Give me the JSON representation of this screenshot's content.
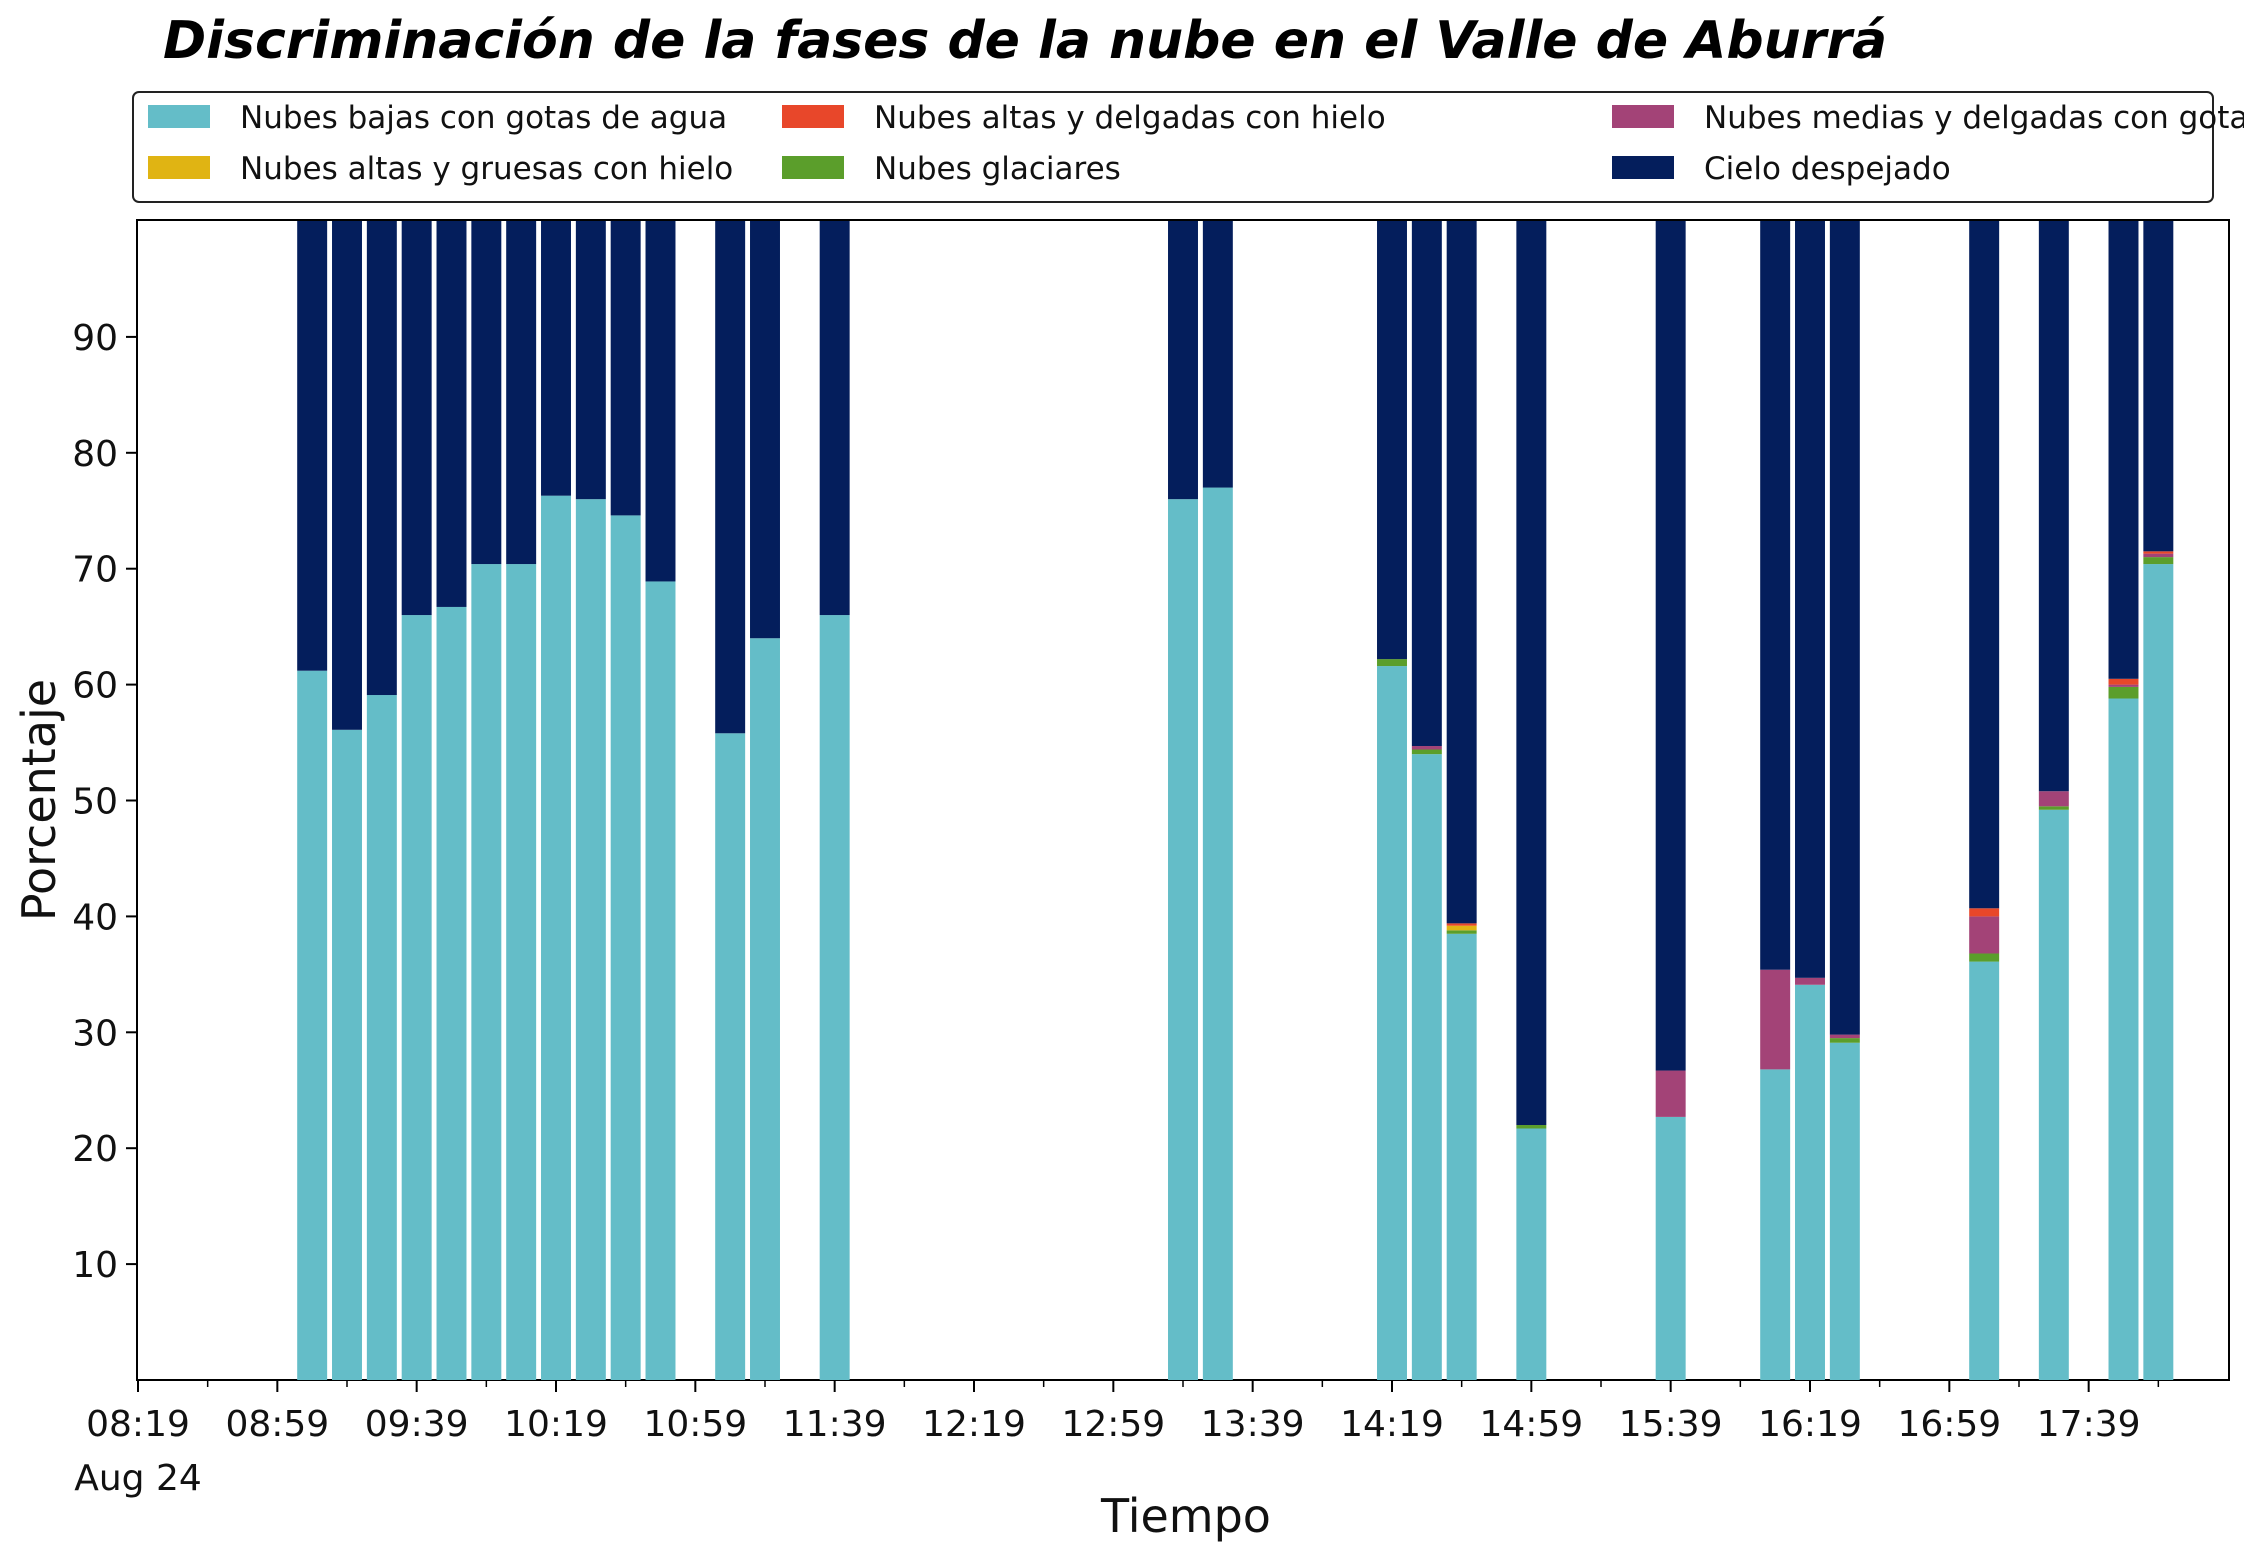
{
  "chart_data": {
    "type": "bar",
    "stacked": true,
    "title": "Discriminación de la fases de la nube en el Valle de Aburrá",
    "xlabel": "Tiempo",
    "ylabel": "Porcentaje",
    "ylim": [
      0,
      100
    ],
    "yticks": [
      10,
      20,
      30,
      40,
      50,
      60,
      70,
      80,
      90
    ],
    "xticks": [
      {
        "time": "08:19",
        "label": "08:19",
        "sublabel": "Aug 24"
      },
      {
        "time": "08:59",
        "label": "08:59"
      },
      {
        "time": "09:39",
        "label": "09:39"
      },
      {
        "time": "10:19",
        "label": "10:19"
      },
      {
        "time": "10:59",
        "label": "10:59"
      },
      {
        "time": "11:39",
        "label": "11:39"
      },
      {
        "time": "12:19",
        "label": "12:19"
      },
      {
        "time": "12:59",
        "label": "12:59"
      },
      {
        "time": "13:39",
        "label": "13:39"
      },
      {
        "time": "14:19",
        "label": "14:19"
      },
      {
        "time": "14:59",
        "label": "14:59"
      },
      {
        "time": "15:39",
        "label": "15:39"
      },
      {
        "time": "16:19",
        "label": "16:19"
      },
      {
        "time": "16:59",
        "label": "16:59"
      },
      {
        "time": "17:39",
        "label": "17:39"
      }
    ],
    "xlim": [
      "08:19",
      "18:19"
    ],
    "x": [
      "09:09",
      "09:19",
      "09:29",
      "09:39",
      "09:49",
      "09:59",
      "10:09",
      "10:19",
      "10:29",
      "10:39",
      "10:49",
      "11:09",
      "11:19",
      "11:39",
      "13:19",
      "13:29",
      "14:19",
      "14:29",
      "14:39",
      "14:59",
      "15:39",
      "16:09",
      "16:19",
      "16:29",
      "17:09",
      "17:29",
      "17:49",
      "17:59"
    ],
    "series": [
      {
        "name": "Nubes bajas con gotas de agua",
        "color": "#64BDC8",
        "values": [
          61.2,
          56.1,
          59.1,
          66.0,
          66.7,
          70.4,
          70.4,
          76.3,
          76.0,
          74.6,
          68.9,
          55.8,
          64.0,
          66.0,
          76.0,
          77.0,
          61.6,
          54.0,
          38.5,
          21.7,
          22.7,
          26.8,
          34.1,
          29.1,
          36.1,
          49.2,
          58.8,
          70.4
        ]
      },
      {
        "name": "Nubes glaciares",
        "color": "#5B9E2B",
        "values": [
          0,
          0,
          0,
          0,
          0,
          0,
          0,
          0,
          0,
          0,
          0,
          0,
          0,
          0,
          0,
          0,
          0.6,
          0.4,
          0.3,
          0.3,
          0,
          0,
          0,
          0.4,
          0.7,
          0.3,
          1.0,
          0.6
        ]
      },
      {
        "name": "Nubes altas y gruesas con hielo",
        "color": "#E0B413",
        "values": [
          0,
          0,
          0,
          0,
          0,
          0,
          0,
          0,
          0,
          0,
          0,
          0,
          0,
          0,
          0,
          0,
          0,
          0,
          0.4,
          0,
          0,
          0,
          0,
          0,
          0,
          0,
          0,
          0
        ]
      },
      {
        "name": "Nubes medias y delgadas con gotas de agua",
        "color": "#A34377",
        "values": [
          0,
          0,
          0,
          0,
          0,
          0,
          0,
          0,
          0,
          0,
          0,
          0,
          0,
          0,
          0,
          0,
          0,
          0.3,
          0,
          0,
          4.0,
          8.6,
          0.6,
          0.3,
          3.2,
          1.3,
          0.2,
          0.3
        ]
      },
      {
        "name": "Nubes altas y delgadas con hielo",
        "color": "#E8472A",
        "values": [
          0,
          0,
          0,
          0,
          0,
          0,
          0,
          0,
          0,
          0,
          0,
          0,
          0,
          0,
          0,
          0,
          0,
          0,
          0.2,
          0,
          0,
          0,
          0,
          0,
          0.7,
          0,
          0.5,
          0.2
        ]
      },
      {
        "name": "Cielo despejado",
        "color": "#041E5C",
        "values": [
          38.8,
          43.9,
          40.9,
          34.0,
          33.3,
          29.6,
          29.6,
          23.7,
          24.0,
          25.4,
          31.1,
          44.2,
          36.0,
          34.0,
          24.0,
          23.0,
          37.8,
          45.3,
          60.6,
          78.0,
          73.3,
          64.6,
          65.3,
          70.2,
          59.3,
          49.2,
          39.5,
          28.5
        ]
      }
    ],
    "legend": {
      "placement": "top",
      "columns": 3,
      "order": [
        0,
        2,
        4,
        1,
        3,
        5
      ]
    },
    "grid": false
  }
}
